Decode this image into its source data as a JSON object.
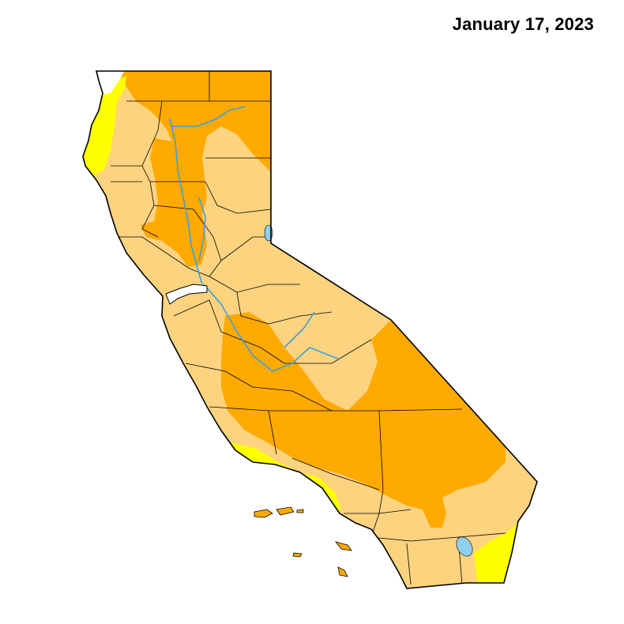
{
  "header": {
    "date": "January 17, 2023"
  },
  "map": {
    "region": "California",
    "colors": {
      "background": "#ffffff",
      "none": "#ffffff",
      "abnormally_dry": "#ffff00",
      "moderate": "#fcd37f",
      "severe": "#ffaa00",
      "water": "#8fd0f0",
      "river": "#3c9fe0",
      "border": "#000000"
    }
  }
}
